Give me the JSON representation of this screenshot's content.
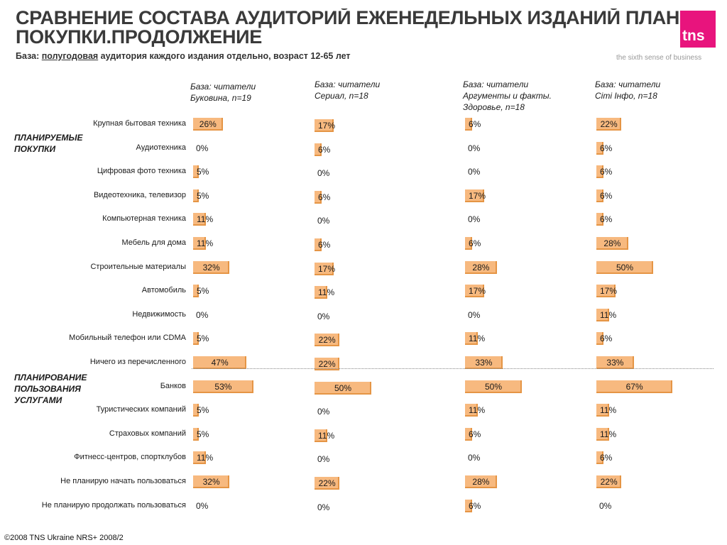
{
  "header": {
    "title_line1": "СРАВНЕНИЕ СОСТАВА АУДИТОРИЙ ЕЖЕНЕДЕЛЬНЫХ ИЗДАНИЙ ПЛАНЫ",
    "title_line2": "ПОКУПКИ.ПРОДОЛЖЕНИЕ",
    "subtitle_prefix": "База: ",
    "subtitle_underlined": "полугодовая",
    "subtitle_suffix": " аудитория каждого издания отдельно, возраст 12-65 лет"
  },
  "brand": {
    "logo_text": "tns",
    "tagline": "the sixth sense of business",
    "color": "#e8147d"
  },
  "groups": {
    "purchases": "ПЛАНИРУЕМЫЕ ПОКУПКИ",
    "services": "ПЛАНИРОВАНИЕ ПОЛЬЗОВАНИЯ УСЛУГАМИ"
  },
  "footer": "©2008 TNS Ukraine  NRS+ 2008/2",
  "chart_data": {
    "type": "bar",
    "orientation": "horizontal",
    "bar_color": "#f7b97f",
    "categories": [
      "Крупная бытовая техника",
      "Аудиотехника",
      "Цифровая фото техника",
      "Видеотехника, телевизор",
      "Компьютерная техника",
      "Мебель для дома",
      "Строительные материалы",
      "Автомобиль",
      "Недвижимость",
      "Мобильный телефон или CDMA",
      "Ничего из перечисленного",
      "Банков",
      "Туристических компаний",
      "Страховых компаний",
      "Фитнесс-центров, спортклубов",
      "Не планирую начать пользоваться",
      "Не планирую продолжать пользоваться"
    ],
    "series": [
      {
        "name": "База: читатели Буковина, n=19",
        "name_lines": [
          "База: читатели",
          "Буковина, n=19"
        ],
        "values": [
          26,
          0,
          5,
          5,
          11,
          11,
          32,
          5,
          0,
          5,
          47,
          53,
          5,
          5,
          11,
          32,
          0
        ]
      },
      {
        "name": "База: читатели Сериал, n=18",
        "name_lines": [
          "База: читатели",
          "Сериал, n=18"
        ],
        "values": [
          17,
          6,
          0,
          6,
          0,
          6,
          17,
          11,
          0,
          22,
          22,
          50,
          0,
          11,
          0,
          22,
          0
        ]
      },
      {
        "name": "База: читатели Аргументы и факты. Здоровье, n=18",
        "name_lines": [
          "База: читатели",
          "Аргументы и факты.",
          "Здоровье, n=18"
        ],
        "values": [
          6,
          0,
          0,
          17,
          0,
          6,
          28,
          17,
          0,
          11,
          33,
          50,
          11,
          6,
          0,
          28,
          6
        ]
      },
      {
        "name": "База: читатели Сіті Інфо, n=18",
        "name_lines": [
          "База: читатели",
          "Сіті Інфо, n=18"
        ],
        "values": [
          22,
          6,
          6,
          6,
          6,
          28,
          50,
          17,
          11,
          6,
          33,
          67,
          11,
          11,
          6,
          22,
          0
        ]
      }
    ],
    "value_suffix": "%"
  }
}
